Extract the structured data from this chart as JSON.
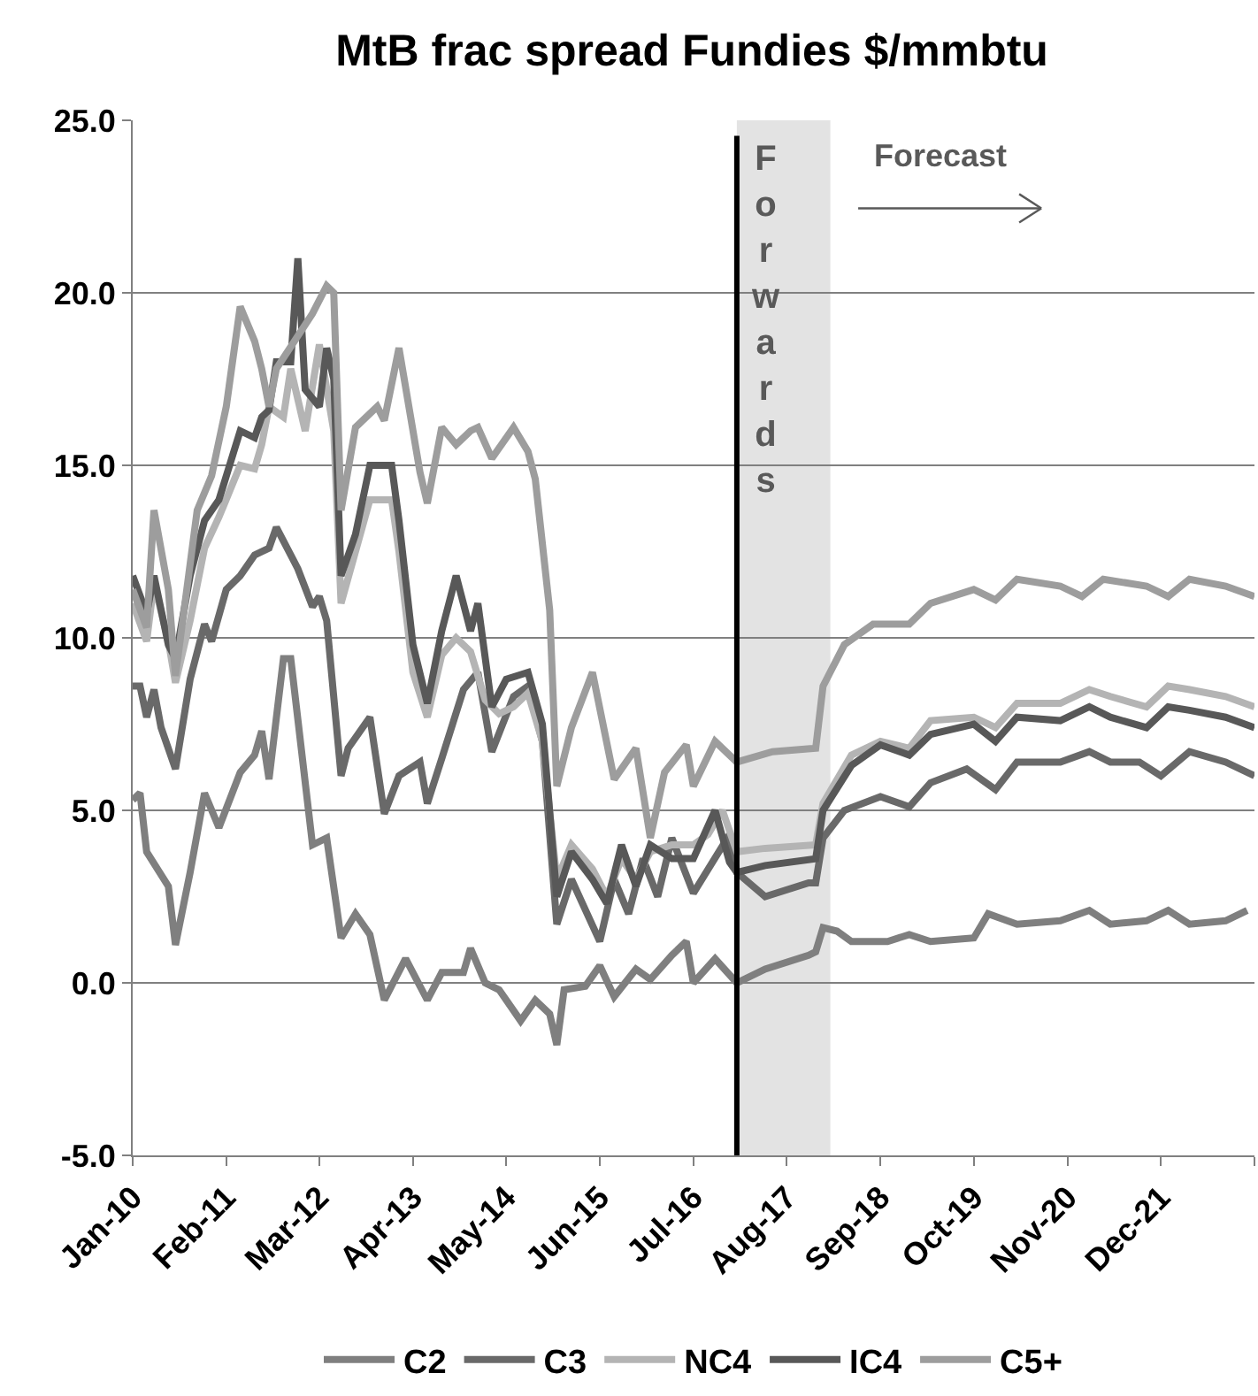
{
  "chart_data": {
    "type": "line",
    "title": "MtB frac spread Fundies $/mmbtu",
    "xlim": [
      "2010-01",
      "2023-01"
    ],
    "xticks": [
      {
        "value": "2010-01",
        "label": "Jan-10"
      },
      {
        "value": "2011-02",
        "label": "Feb-11"
      },
      {
        "value": "2012-03",
        "label": "Mar-12"
      },
      {
        "value": "2013-04",
        "label": "Apr-13"
      },
      {
        "value": "2014-05",
        "label": "May-14"
      },
      {
        "value": "2015-06",
        "label": "Jun-15"
      },
      {
        "value": "2016-07",
        "label": "Jul-16"
      },
      {
        "value": "2017-08",
        "label": "Aug-17"
      },
      {
        "value": "2018-09",
        "label": "Sep-18"
      },
      {
        "value": "2019-10",
        "label": "Oct-19"
      },
      {
        "value": "2020-11",
        "label": "Nov-20"
      },
      {
        "value": "2021-12",
        "label": "Dec-21"
      },
      {
        "value": "2023-01",
        "label": null
      }
    ],
    "ylim": [
      -5,
      25
    ],
    "yticks": [
      {
        "value": -5,
        "label": "-5.0"
      },
      {
        "value": 0,
        "label": "0.0"
      },
      {
        "value": 5,
        "label": "5.0"
      },
      {
        "value": 10,
        "label": "10.0"
      },
      {
        "value": 15,
        "label": "15.0"
      },
      {
        "value": 20,
        "label": "20.0"
      },
      {
        "value": 25,
        "label": "25.0"
      }
    ],
    "grid": "y",
    "legend": "bottom",
    "marker": "none",
    "line_style": "solid",
    "ref_lines": [
      {
        "axis": "x",
        "value": "2017-01",
        "color": "#000000"
      }
    ],
    "bands": [
      {
        "axis": "x",
        "from": "2017-01",
        "to": "2018-02",
        "label": "Forwards",
        "color": "#e3e3e3"
      }
    ],
    "annotations": [
      "Forecast"
    ],
    "series": [
      {
        "name": "C2",
        "color": "#7f7f7f",
        "x": [
          "2010-01",
          "2010-02",
          "2010-03",
          "2010-06",
          "2010-07",
          "2010-09",
          "2010-11",
          "2011-01",
          "2011-04",
          "2011-06",
          "2011-07",
          "2011-08",
          "2011-10",
          "2011-11",
          "2012-02",
          "2012-04",
          "2012-06",
          "2012-08",
          "2012-10",
          "2012-12",
          "2013-03",
          "2013-06",
          "2013-08",
          "2013-11",
          "2013-12",
          "2014-02",
          "2014-04",
          "2014-07",
          "2014-09",
          "2014-11",
          "2014-12",
          "2015-01",
          "2015-04",
          "2015-06",
          "2015-08",
          "2015-11",
          "2016-01",
          "2016-04",
          "2016-06",
          "2016-07",
          "2016-10",
          "2017-01",
          "2017-05",
          "2017-11",
          "2017-12",
          "2018-01",
          "2018-03",
          "2018-05",
          "2018-10",
          "2019-01",
          "2019-04",
          "2019-10",
          "2019-12",
          "2020-04",
          "2020-10",
          "2021-02",
          "2021-05",
          "2021-10",
          "2022-01",
          "2022-04",
          "2022-09",
          "2022-12"
        ],
        "values": [
          5.3,
          5.5,
          3.8,
          2.8,
          1.1,
          3.2,
          5.5,
          4.5,
          6.1,
          6.6,
          7.3,
          5.9,
          9.4,
          9.4,
          4.0,
          4.2,
          1.3,
          2.0,
          1.4,
          -0.5,
          0.7,
          -0.5,
          0.3,
          0.3,
          1.0,
          0.0,
          -0.2,
          -1.1,
          -0.5,
          -0.9,
          -1.8,
          -0.2,
          -0.1,
          0.5,
          -0.4,
          0.4,
          0.1,
          0.8,
          1.2,
          0.0,
          0.7,
          0.0,
          0.4,
          0.8,
          0.9,
          1.6,
          1.5,
          1.2,
          1.2,
          1.4,
          1.2,
          1.3,
          2.0,
          1.7,
          1.8,
          2.1,
          1.7,
          1.8,
          2.1,
          1.7,
          1.8,
          2.1
        ]
      },
      {
        "name": "C3",
        "color": "#696969",
        "x": [
          "2010-01",
          "2010-02",
          "2010-03",
          "2010-04",
          "2010-05",
          "2010-07",
          "2010-09",
          "2010-11",
          "2010-12",
          "2011-02",
          "2011-04",
          "2011-06",
          "2011-08",
          "2011-09",
          "2011-11",
          "2011-12",
          "2012-02",
          "2012-03",
          "2012-04",
          "2012-06",
          "2012-07",
          "2012-10",
          "2012-12",
          "2013-02",
          "2013-05",
          "2013-06",
          "2013-08",
          "2013-11",
          "2014-01",
          "2014-03",
          "2014-06",
          "2014-08",
          "2014-10",
          "2014-12",
          "2015-02",
          "2015-06",
          "2015-08",
          "2015-10",
          "2015-12",
          "2016-02",
          "2016-04",
          "2016-07",
          "2016-12",
          "2017-01",
          "2017-05",
          "2017-11",
          "2017-12",
          "2018-01",
          "2018-04",
          "2018-09",
          "2019-01",
          "2019-04",
          "2019-09",
          "2020-01",
          "2020-04",
          "2020-10",
          "2021-02",
          "2021-05",
          "2021-09",
          "2021-12",
          "2022-04",
          "2022-09",
          "2023-01"
        ],
        "values": [
          8.6,
          8.6,
          7.7,
          8.5,
          7.4,
          6.2,
          8.8,
          10.4,
          9.9,
          11.4,
          11.8,
          12.4,
          12.6,
          13.2,
          12.4,
          12.0,
          10.9,
          11.2,
          10.5,
          6.0,
          6.8,
          7.7,
          4.9,
          6.0,
          6.4,
          5.2,
          6.5,
          8.5,
          9.0,
          6.7,
          8.3,
          8.6,
          7.0,
          1.7,
          3.0,
          1.2,
          3.0,
          2.0,
          3.6,
          2.5,
          4.2,
          2.6,
          4.3,
          3.2,
          2.5,
          2.9,
          2.9,
          4.2,
          5.0,
          5.4,
          5.1,
          5.8,
          6.2,
          5.6,
          6.4,
          6.4,
          6.7,
          6.4,
          6.4,
          6.0,
          6.7,
          6.4,
          6.0
        ]
      },
      {
        "name": "NC4",
        "color": "#b4b4b4",
        "x": [
          "2010-01",
          "2010-03",
          "2010-04",
          "2010-06",
          "2010-07",
          "2010-09",
          "2010-11",
          "2011-01",
          "2011-04",
          "2011-06",
          "2011-07",
          "2011-08",
          "2011-10",
          "2011-11",
          "2012-01",
          "2012-03",
          "2012-05",
          "2012-06",
          "2012-08",
          "2012-10",
          "2013-01",
          "2013-02",
          "2013-04",
          "2013-06",
          "2013-08",
          "2013-10",
          "2013-12",
          "2014-02",
          "2014-04",
          "2014-06",
          "2014-08",
          "2014-10",
          "2014-12",
          "2015-02",
          "2015-05",
          "2015-07",
          "2015-09",
          "2015-11",
          "2016-01",
          "2016-04",
          "2016-07",
          "2016-09",
          "2016-11",
          "2017-01",
          "2017-05",
          "2017-12",
          "2018-01",
          "2018-05",
          "2018-09",
          "2019-01",
          "2019-04",
          "2019-10",
          "2020-01",
          "2020-04",
          "2020-10",
          "2021-02",
          "2021-05",
          "2021-10",
          "2022-01",
          "2022-04",
          "2022-09",
          "2023-01"
        ],
        "values": [
          11.0,
          9.9,
          11.6,
          9.9,
          8.7,
          10.5,
          12.6,
          13.5,
          15.0,
          14.9,
          15.6,
          16.7,
          16.4,
          17.8,
          16.0,
          18.5,
          16.0,
          11.0,
          12.5,
          14.0,
          14.0,
          12.5,
          9.0,
          7.7,
          9.5,
          10.0,
          9.6,
          8.2,
          7.8,
          8.0,
          8.4,
          7.0,
          3.0,
          4.0,
          3.3,
          2.5,
          3.6,
          3.0,
          3.8,
          4.0,
          4.0,
          4.3,
          5.0,
          3.8,
          3.9,
          4.0,
          5.2,
          6.6,
          7.0,
          6.8,
          7.6,
          7.7,
          7.4,
          8.1,
          8.1,
          8.5,
          8.3,
          8.0,
          8.6,
          8.5,
          8.3,
          8.0
        ]
      },
      {
        "name": "IC4",
        "color": "#585858",
        "x": [
          "2010-01",
          "2010-03",
          "2010-04",
          "2010-06",
          "2010-07",
          "2010-09",
          "2010-11",
          "2011-01",
          "2011-04",
          "2011-06",
          "2011-07",
          "2011-08",
          "2011-09",
          "2011-11",
          "2011-12",
          "2012-01",
          "2012-03",
          "2012-04",
          "2012-05",
          "2012-06",
          "2012-08",
          "2012-10",
          "2013-01",
          "2013-02",
          "2013-04",
          "2013-06",
          "2013-08",
          "2013-10",
          "2013-12",
          "2014-01",
          "2014-03",
          "2014-05",
          "2014-08",
          "2014-10",
          "2014-12",
          "2015-02",
          "2015-05",
          "2015-07",
          "2015-09",
          "2015-11",
          "2016-01",
          "2016-04",
          "2016-07",
          "2016-10",
          "2016-12",
          "2017-01",
          "2017-05",
          "2017-12",
          "2018-01",
          "2018-05",
          "2018-09",
          "2019-01",
          "2019-04",
          "2019-10",
          "2020-01",
          "2020-04",
          "2020-10",
          "2021-02",
          "2021-05",
          "2021-10",
          "2022-01",
          "2022-04",
          "2022-09",
          "2023-01"
        ],
        "values": [
          11.8,
          10.7,
          11.8,
          9.8,
          9.4,
          11.8,
          13.4,
          14.0,
          16.0,
          15.8,
          16.4,
          16.6,
          18.0,
          18.0,
          21.0,
          17.2,
          16.7,
          18.4,
          17.5,
          11.8,
          13.0,
          15.0,
          15.0,
          13.4,
          9.8,
          8.1,
          10.2,
          11.8,
          10.2,
          11.0,
          8.0,
          8.8,
          9.0,
          7.5,
          2.5,
          3.8,
          3.0,
          2.3,
          4.0,
          2.8,
          4.0,
          3.6,
          3.6,
          5.0,
          3.5,
          3.2,
          3.4,
          3.6,
          5.0,
          6.3,
          6.9,
          6.6,
          7.2,
          7.5,
          7.0,
          7.7,
          7.6,
          8.0,
          7.7,
          7.4,
          8.0,
          7.9,
          7.7,
          7.4
        ]
      },
      {
        "name": "C5+",
        "color": "#9d9d9d",
        "x": [
          "2010-01",
          "2010-03",
          "2010-04",
          "2010-06",
          "2010-07",
          "2010-10",
          "2010-12",
          "2011-02",
          "2011-04",
          "2011-06",
          "2011-07",
          "2011-08",
          "2011-09",
          "2012-02",
          "2012-04",
          "2012-05",
          "2012-06",
          "2012-08",
          "2012-11",
          "2012-12",
          "2013-02",
          "2013-05",
          "2013-06",
          "2013-08",
          "2013-10",
          "2013-12",
          "2014-01",
          "2014-03",
          "2014-06",
          "2014-08",
          "2014-09",
          "2014-11",
          "2014-12",
          "2015-02",
          "2015-05",
          "2015-08",
          "2015-11",
          "2016-01",
          "2016-03",
          "2016-06",
          "2016-07",
          "2016-10",
          "2017-01",
          "2017-06",
          "2017-12",
          "2018-01",
          "2018-04",
          "2018-08",
          "2019-01",
          "2019-04",
          "2019-10",
          "2020-01",
          "2020-04",
          "2020-10",
          "2021-01",
          "2021-04",
          "2021-10",
          "2022-01",
          "2022-04",
          "2022-09",
          "2023-01"
        ],
        "values": [
          11.4,
          10.3,
          13.7,
          11.4,
          8.9,
          13.7,
          14.7,
          16.7,
          19.6,
          18.6,
          17.8,
          16.7,
          17.8,
          19.4,
          20.2,
          20.0,
          13.7,
          16.1,
          16.7,
          16.3,
          18.4,
          14.8,
          13.9,
          16.1,
          15.6,
          16.0,
          16.1,
          15.2,
          16.1,
          15.4,
          14.6,
          10.8,
          5.7,
          7.4,
          9.0,
          5.9,
          6.8,
          4.2,
          6.1,
          6.9,
          5.7,
          7.0,
          6.4,
          6.7,
          6.8,
          8.6,
          9.8,
          10.4,
          10.4,
          11.0,
          11.4,
          11.1,
          11.7,
          11.5,
          11.2,
          11.7,
          11.5,
          11.2,
          11.7,
          11.5,
          11.2
        ]
      }
    ]
  }
}
